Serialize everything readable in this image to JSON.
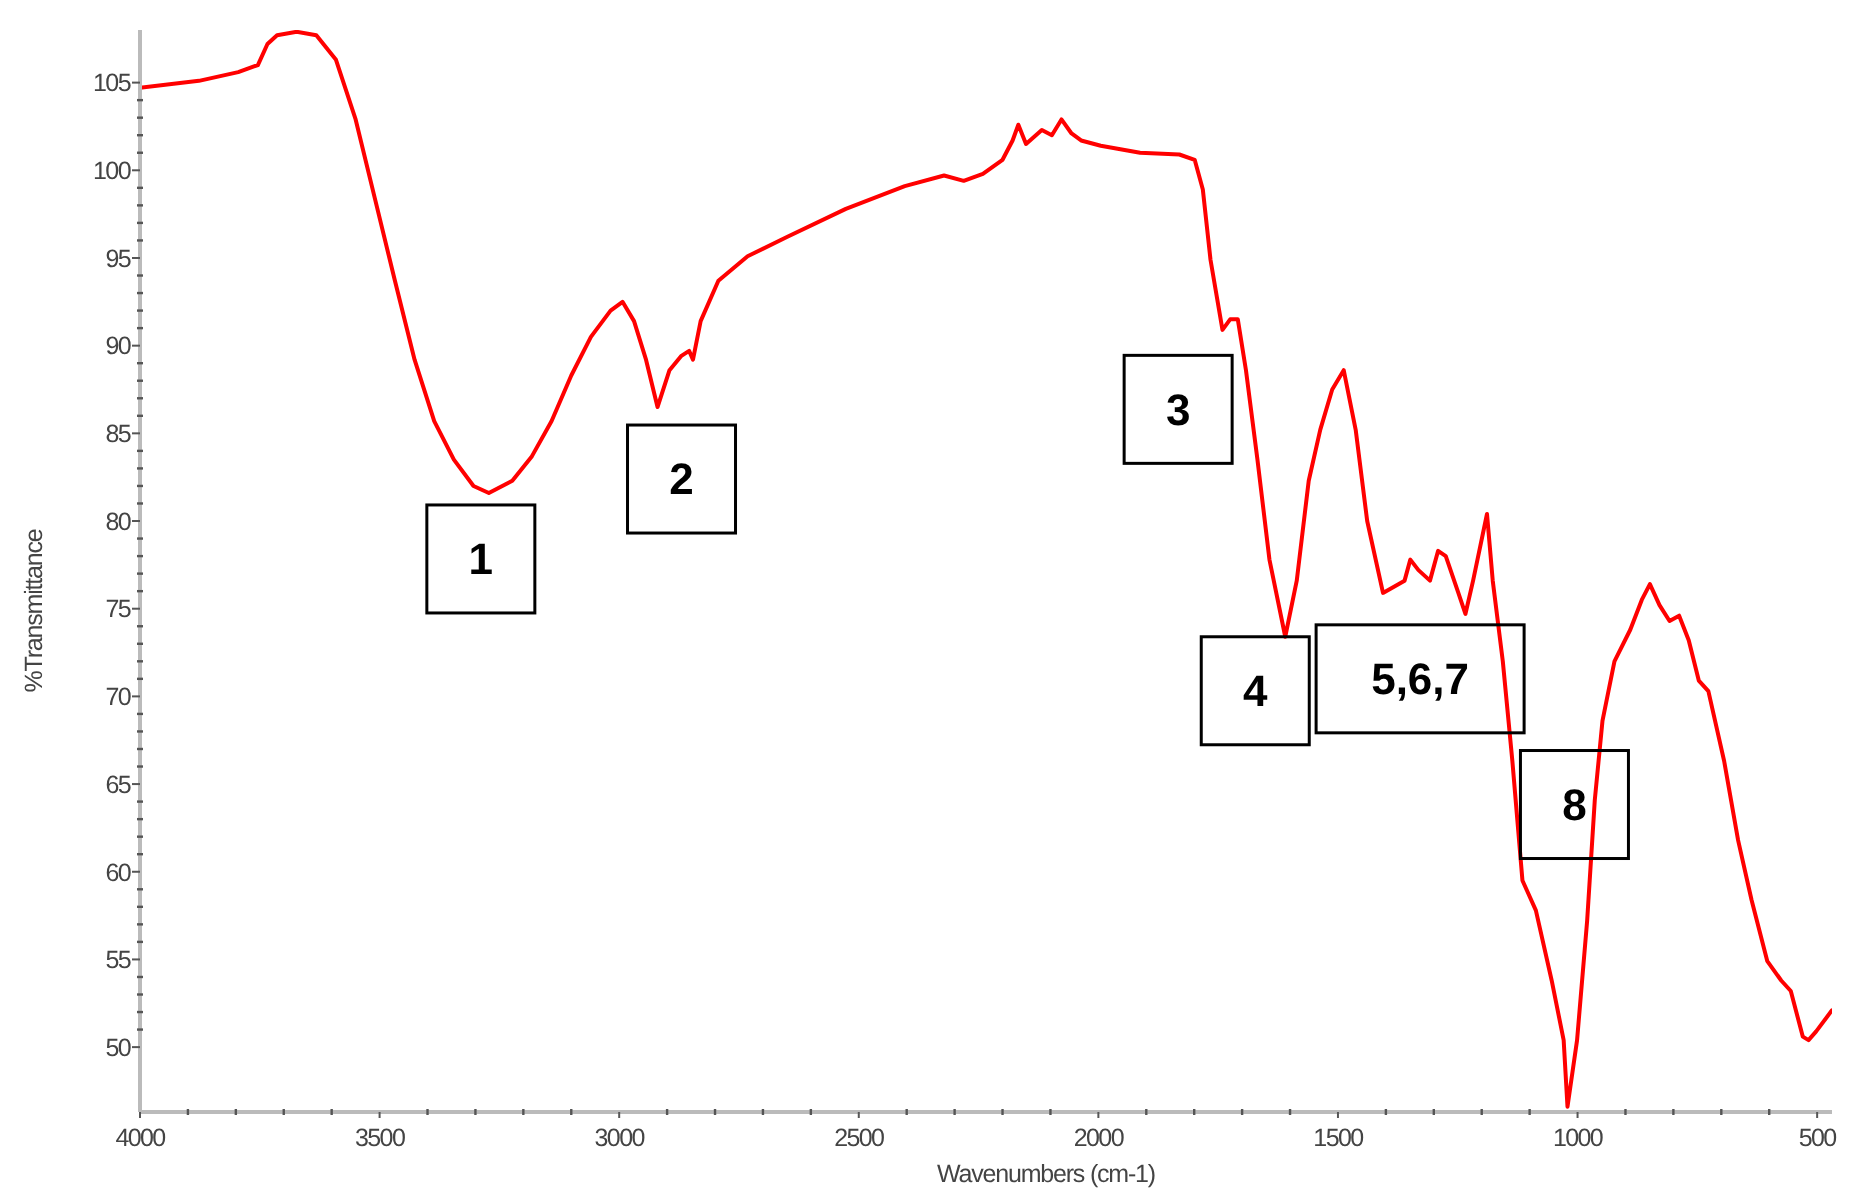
{
  "chart_data": {
    "type": "line",
    "xlabel": "Wavenumbers (cm-1)",
    "ylabel": "%Transmittance",
    "xlim": [
      4000,
      469
    ],
    "ylim": [
      46.3,
      108
    ],
    "xticks": [
      4000,
      3500,
      3000,
      2500,
      2000,
      1500,
      1000,
      500
    ],
    "yticks": [
      50,
      55,
      60,
      65,
      70,
      75,
      80,
      85,
      90,
      95,
      100,
      105
    ],
    "grid": false,
    "legend": false,
    "marker": "none",
    "line_style": "solid",
    "series": [
      {
        "color": "#ff0000",
        "x": [
          4000,
          3877,
          3795,
          3754,
          3734,
          3714,
          3673,
          3632,
          3591,
          3550,
          3509,
          3468,
          3427,
          3386,
          3345,
          3304,
          3272,
          3223,
          3182,
          3141,
          3100,
          3059,
          3018,
          2993,
          2969,
          2944,
          2920,
          2895,
          2871,
          2854,
          2846,
          2830,
          2793,
          2732,
          2650,
          2527,
          2404,
          2322,
          2281,
          2241,
          2200,
          2179,
          2167,
          2151,
          2118,
          2097,
          2077,
          2056,
          2036,
          1995,
          1913,
          1831,
          1799,
          1782,
          1766,
          1741,
          1725,
          1709,
          1692,
          1668,
          1643,
          1610,
          1586,
          1561,
          1537,
          1512,
          1488,
          1463,
          1439,
          1406,
          1361,
          1349,
          1332,
          1308,
          1291,
          1275,
          1250,
          1234,
          1218,
          1189,
          1177,
          1156,
          1136,
          1115,
          1087,
          1054,
          1029,
          1021,
          1001,
          980,
          964,
          948,
          923,
          890,
          866,
          849,
          829,
          808,
          788,
          768,
          747,
          727,
          694,
          665,
          637,
          604,
          575,
          555,
          530,
          518,
          502,
          469
        ],
        "values": [
          104.7,
          105.1,
          105.6,
          106.0,
          107.2,
          107.7,
          107.9,
          107.7,
          106.3,
          102.9,
          98.3,
          93.7,
          89.2,
          85.7,
          83.5,
          82.0,
          81.6,
          82.3,
          83.7,
          85.7,
          88.3,
          90.5,
          92.0,
          92.5,
          91.4,
          89.2,
          86.5,
          88.6,
          89.4,
          89.7,
          89.2,
          91.4,
          93.7,
          95.1,
          96.2,
          97.8,
          99.1,
          99.7,
          99.4,
          99.8,
          100.6,
          101.7,
          102.6,
          101.5,
          102.3,
          102.0,
          102.9,
          102.1,
          101.7,
          101.4,
          101.0,
          100.9,
          100.6,
          98.9,
          94.9,
          90.9,
          91.5,
          91.5,
          88.6,
          83.5,
          77.8,
          73.4,
          76.6,
          82.3,
          85.2,
          87.5,
          88.6,
          85.2,
          80.0,
          75.9,
          76.6,
          77.8,
          77.2,
          76.6,
          78.3,
          78.0,
          76.0,
          74.7,
          76.6,
          80.4,
          76.6,
          72.0,
          66.3,
          59.5,
          57.8,
          53.8,
          50.4,
          46.6,
          50.4,
          57.2,
          64.1,
          68.6,
          72.0,
          73.8,
          75.5,
          76.4,
          75.2,
          74.3,
          74.6,
          73.2,
          70.9,
          70.3,
          66.3,
          61.8,
          58.4,
          54.9,
          53.8,
          53.2,
          50.6,
          50.4,
          50.9,
          52.1
        ]
      }
    ],
    "annotations": [
      {
        "text": "1",
        "x": 3272,
        "y": 81.6
      },
      {
        "text": "2",
        "x": 2920,
        "y": 86.5
      },
      {
        "text": "3",
        "x": 1725,
        "y": 91.5
      },
      {
        "text": "4",
        "x": 1610,
        "y": 73.4
      },
      {
        "text": "5,6,7",
        "x": 1291,
        "y": 78.3
      },
      {
        "text": "8",
        "x": 1115,
        "y": 59.5
      }
    ]
  }
}
